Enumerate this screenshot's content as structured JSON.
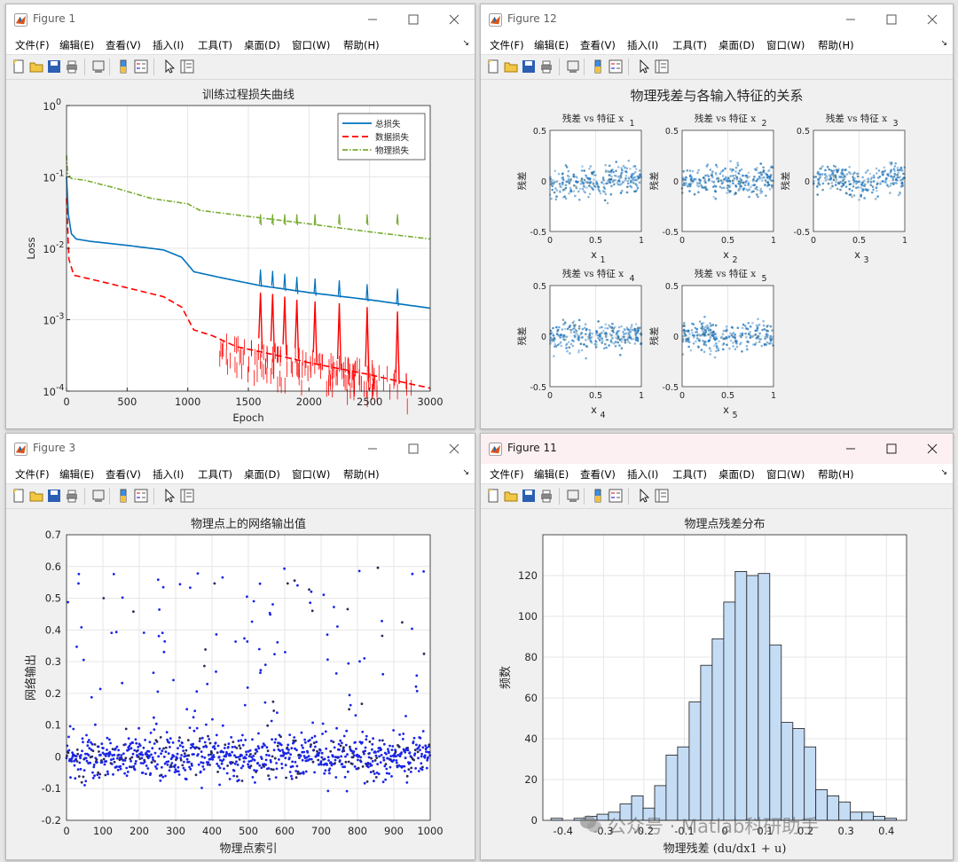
{
  "menu": [
    "文件(F)",
    "编辑(E)",
    "查看(V)",
    "插入(I)",
    "工具(T)",
    "桌面(D)",
    "窗口(W)",
    "帮助(H)"
  ],
  "colors": {
    "blue": "#0072bd",
    "red": "#ff0000",
    "green": "#77ac30",
    "scatter": "#1a24e6",
    "hist": "#c5dcf5"
  },
  "fig1": {
    "title": "Figure 1",
    "chart_data": {
      "type": "line",
      "title": "训练过程损失曲线",
      "xlabel": "Epoch",
      "ylabel": "Loss",
      "yscale": "log",
      "xlim": [
        0,
        3000
      ],
      "ylim": [
        0.0001,
        1
      ],
      "xticks": [
        "0",
        "500",
        "1000",
        "1500",
        "2000",
        "2500",
        "3000"
      ],
      "yticks": [
        "10",
        "10",
        "10",
        "10",
        "10"
      ],
      "yexp": [
        "0",
        "-1",
        "-2",
        "-3",
        "-4"
      ],
      "legend_position": "top-right",
      "series": [
        {
          "name": "总损失",
          "style": "solid",
          "x": [
            0,
            15,
            40,
            80,
            200,
            500,
            800,
            950,
            1050,
            1300,
            1600,
            2000,
            2500,
            3000
          ],
          "y": [
            0.1,
            0.03,
            0.016,
            0.0135,
            0.0125,
            0.011,
            0.0095,
            0.0075,
            0.0047,
            0.0038,
            0.003,
            0.0024,
            0.0019,
            0.00145
          ]
        },
        {
          "name": "数据损失",
          "style": "dashed",
          "x": [
            0,
            20,
            60,
            200,
            500,
            800,
            950,
            1050,
            1200,
            1400,
            1800,
            2000,
            2500,
            2800,
            3000
          ],
          "y": [
            0.05,
            0.007,
            0.0042,
            0.0037,
            0.0028,
            0.0021,
            0.0015,
            0.00072,
            0.0006,
            0.00042,
            0.0003,
            0.00025,
            0.00017,
            0.00013,
            0.00011
          ]
        },
        {
          "name": "物理损失",
          "style": "dash-dot",
          "x": [
            0,
            10,
            40,
            150,
            400,
            700,
            1000,
            1100,
            1500,
            2000,
            2500,
            3000
          ],
          "y": [
            0.2,
            0.11,
            0.095,
            0.09,
            0.07,
            0.05,
            0.042,
            0.034,
            0.028,
            0.022,
            0.017,
            0.0135
          ]
        }
      ]
    }
  },
  "fig12": {
    "title": "Figure 12",
    "chart_data": {
      "type": "scatter",
      "title": "物理残差与各输入特征的关系",
      "subplots": [
        {
          "title": "残差 vs 特征 x",
          "sub": "1",
          "xlabel": "x",
          "xsub": "1",
          "ylabel": "残差"
        },
        {
          "title": "残差 vs 特征 x",
          "sub": "2",
          "xlabel": "x",
          "xsub": "2",
          "ylabel": "残差"
        },
        {
          "title": "残差 vs 特征 x",
          "sub": "3",
          "xlabel": "x",
          "xsub": "3",
          "ylabel": "残差"
        },
        {
          "title": "残差 vs 特征 x",
          "sub": "4",
          "xlabel": "x",
          "xsub": "4",
          "ylabel": "残差"
        },
        {
          "title": "残差 vs 特征 x",
          "sub": "5",
          "xlabel": "x",
          "xsub": "5",
          "ylabel": "残差"
        }
      ],
      "xticks": [
        "0",
        "0.5",
        "1"
      ],
      "yticks": [
        "0.5",
        "0",
        "-0.5"
      ],
      "xlim": [
        0,
        1
      ],
      "ylim": [
        -0.5,
        0.5
      ]
    }
  },
  "fig3": {
    "title": "Figure 3",
    "chart_data": {
      "type": "scatter",
      "title": "物理点上的网络输出值",
      "xlabel": "物理点索引",
      "ylabel": "网络输出",
      "xlim": [
        0,
        1000
      ],
      "ylim": [
        -0.2,
        0.7
      ],
      "xticks": [
        "0",
        "100",
        "200",
        "300",
        "400",
        "500",
        "600",
        "700",
        "800",
        "900",
        "1000"
      ],
      "yticks": [
        "0.7",
        "0.6",
        "0.5",
        "0.4",
        "0.3",
        "0.2",
        "0.1",
        "0",
        "-0.1",
        "-0.2"
      ]
    }
  },
  "fig11": {
    "title": "Figure 11",
    "chart_data": {
      "type": "bar",
      "title": "物理点残差分布",
      "xlabel": "物理残差 (du/dx1 + u)",
      "ylabel": "频数",
      "xlim": [
        -0.45,
        0.45
      ],
      "ylim": [
        0,
        140
      ],
      "xticks": [
        "-0.4",
        "-0.3",
        "-0.2",
        "-0.1",
        "0",
        "0.1",
        "0.2",
        "0.3",
        "0.4"
      ],
      "yticks": [
        "120",
        "100",
        "80",
        "60",
        "40",
        "20",
        "0"
      ],
      "bin_left": -0.43,
      "bin_width": 0.0285,
      "values": [
        1,
        0,
        1,
        2,
        3,
        4,
        8,
        12,
        6,
        17,
        32,
        36,
        58,
        76,
        89,
        107,
        122,
        120,
        121,
        86,
        48,
        45,
        36,
        15,
        12,
        9,
        4,
        4,
        2,
        1
      ]
    }
  },
  "watermark": "公众号 · Matlab科研助手"
}
